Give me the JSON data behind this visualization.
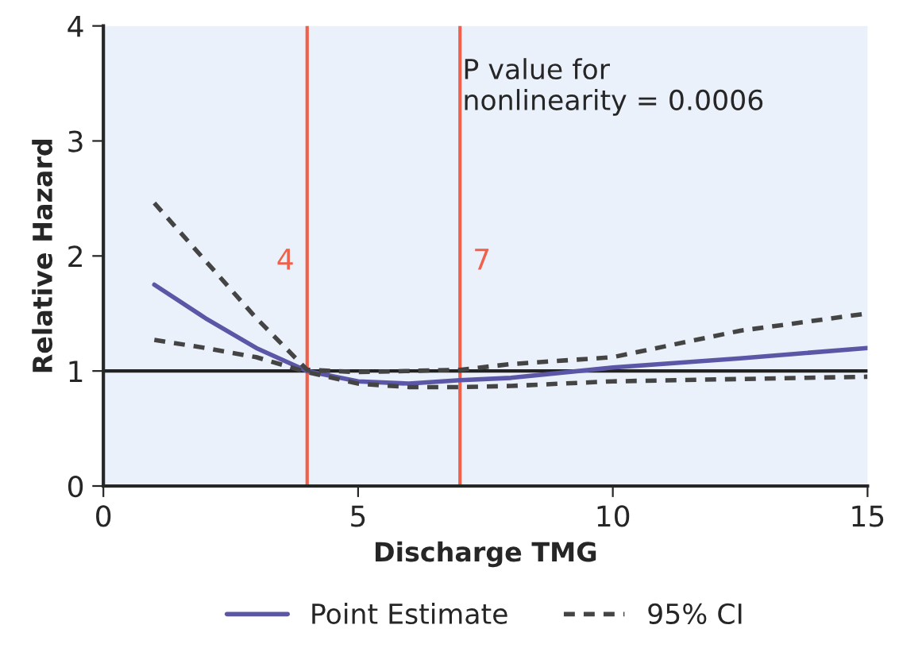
{
  "chart_data": {
    "type": "line",
    "xlabel": "Discharge TMG",
    "ylabel": "Relative Hazard",
    "x": [
      1,
      2,
      3,
      4,
      5,
      6,
      7,
      8,
      10,
      12.5,
      15
    ],
    "series": [
      {
        "name": "Point Estimate",
        "color": "#5b57a6",
        "line_style": "solid",
        "values": [
          1.75,
          1.46,
          1.2,
          1.0,
          0.91,
          0.89,
          0.92,
          0.94,
          1.03,
          1.11,
          1.2
        ]
      },
      {
        "name": "95% CI",
        "color": "#444444",
        "line_style": "dashed",
        "values": [
          2.46,
          1.96,
          1.46,
          1.01,
          0.99,
          1.0,
          1.01,
          1.06,
          1.12,
          1.35,
          1.5
        ]
      },
      {
        "color": "#444444",
        "line_style": "dashed",
        "values": [
          1.27,
          1.2,
          1.12,
          0.99,
          0.89,
          0.86,
          0.86,
          0.87,
          0.91,
          0.93,
          0.95
        ]
      }
    ],
    "xlim": [
      0,
      15
    ],
    "ylim": [
      0,
      4
    ],
    "xticks": [
      0,
      5,
      10,
      15
    ],
    "yticks": [
      0,
      1,
      2,
      3,
      4
    ],
    "ref_lines": [
      {
        "axis": "x",
        "value": 4,
        "label": "4",
        "color": "#f0604a"
      },
      {
        "axis": "x",
        "value": 7,
        "label": "7",
        "color": "#f0604a"
      },
      {
        "axis": "y",
        "value": 1,
        "color": "#222222"
      }
    ],
    "annotations": [
      "P value for\nnonlinearity = 0.0006"
    ],
    "grid": false,
    "legend": "bottom"
  }
}
